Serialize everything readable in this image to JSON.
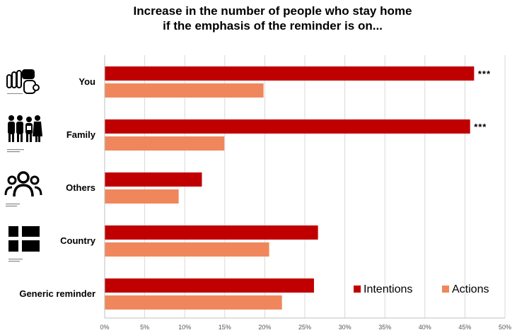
{
  "chart_data": {
    "type": "bar",
    "orientation": "horizontal",
    "title_line1": "Increase in the number of people who stay home",
    "title_line2": "if the emphasis of the reminder is on...",
    "categories": [
      "You",
      "Family",
      "Others",
      "Country",
      "Generic reminder"
    ],
    "series": [
      {
        "name": "Intentions",
        "color": "#c00000",
        "values": [
          46.1,
          45.6,
          12.1,
          26.6,
          26.1
        ]
      },
      {
        "name": "Actions",
        "color": "#f0875c",
        "values": [
          19.8,
          14.9,
          9.2,
          20.5,
          22.1
        ]
      }
    ],
    "significance": [
      "***",
      "***",
      "",
      "",
      ""
    ],
    "xlim": [
      0,
      50
    ],
    "xticks": [
      "0%",
      "5%",
      "10%",
      "15%",
      "20%",
      "25%",
      "30%",
      "35%",
      "40%",
      "45%",
      "50%"
    ],
    "legend_position": "bottom-right",
    "grid": "vertical",
    "icons": [
      "hand-pointing-icon",
      "family-icon",
      "group-people-icon",
      "flag-icon",
      ""
    ]
  }
}
